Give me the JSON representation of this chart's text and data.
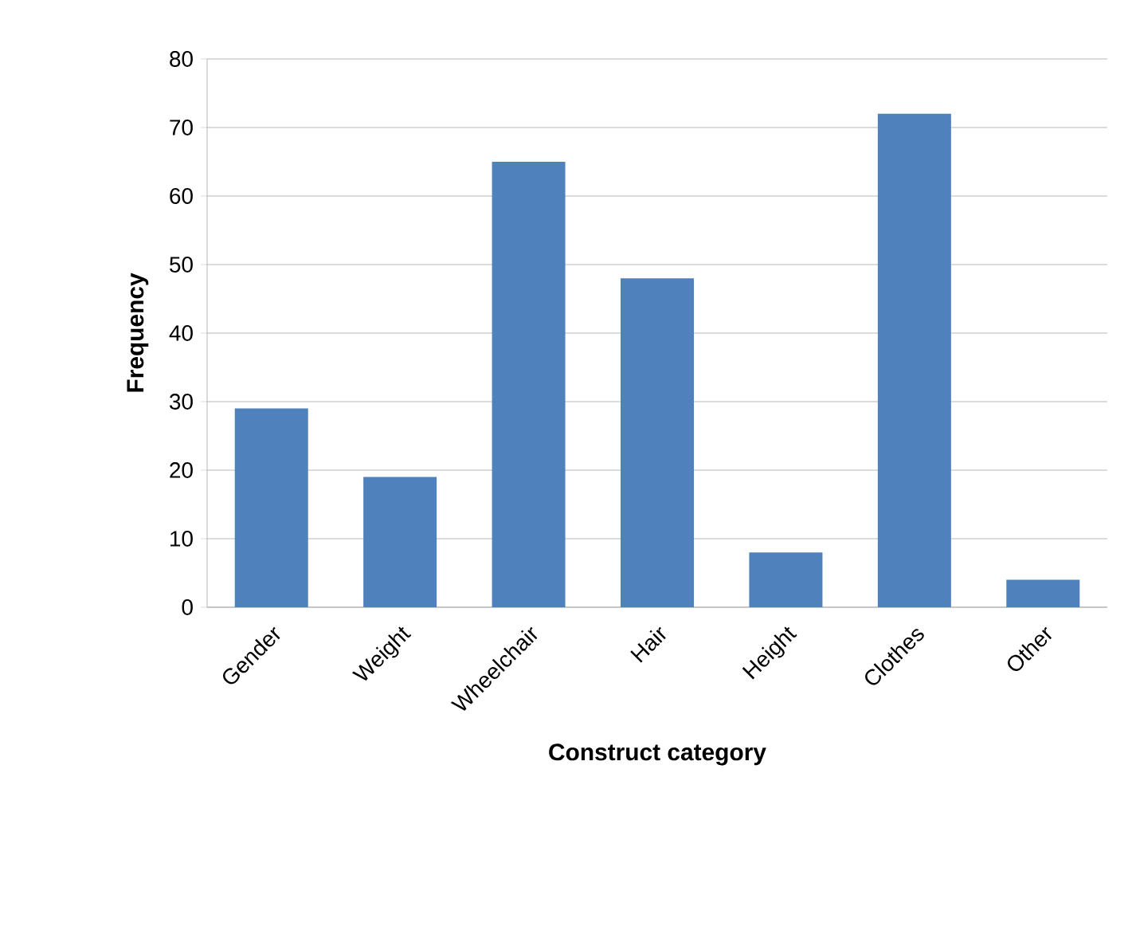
{
  "chart_data": {
    "type": "bar",
    "xlabel": "Construct category",
    "ylabel": "Frequency",
    "categories": [
      "Gender",
      "Weight",
      "Wheelchair",
      "Hair",
      "Height",
      "Clothes",
      "Other"
    ],
    "values": [
      29,
      19,
      65,
      48,
      8,
      72,
      4
    ],
    "color": "#4f81bd",
    "ylim": [
      0,
      80
    ],
    "yticks": [
      0,
      10,
      20,
      30,
      40,
      50,
      60,
      70,
      80
    ],
    "grid": "y"
  }
}
